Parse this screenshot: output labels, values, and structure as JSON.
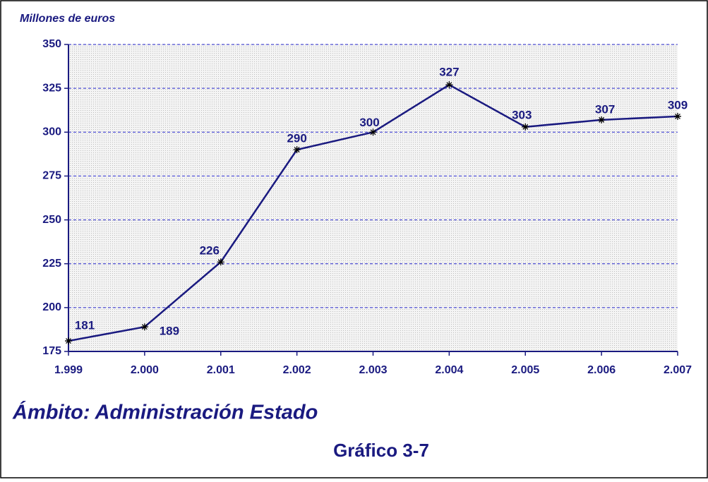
{
  "chart_data": {
    "type": "line",
    "y_axis_label": "Millones de euros",
    "subtitle": "Ámbito: Administración Estado",
    "title": "Gráfico 3-7",
    "categories": [
      "1.999",
      "2.000",
      "2.001",
      "2.002",
      "2.003",
      "2.004",
      "2.005",
      "2.006",
      "2.007"
    ],
    "series": [
      {
        "name": "Millones de euros",
        "color": "#1a1a80",
        "values": [
          181,
          189,
          226,
          290,
          300,
          327,
          303,
          307,
          309
        ]
      }
    ],
    "ylim": [
      175,
      350
    ],
    "yticks": [
      175,
      200,
      225,
      250,
      275,
      300,
      325,
      350
    ],
    "grid": true
  }
}
